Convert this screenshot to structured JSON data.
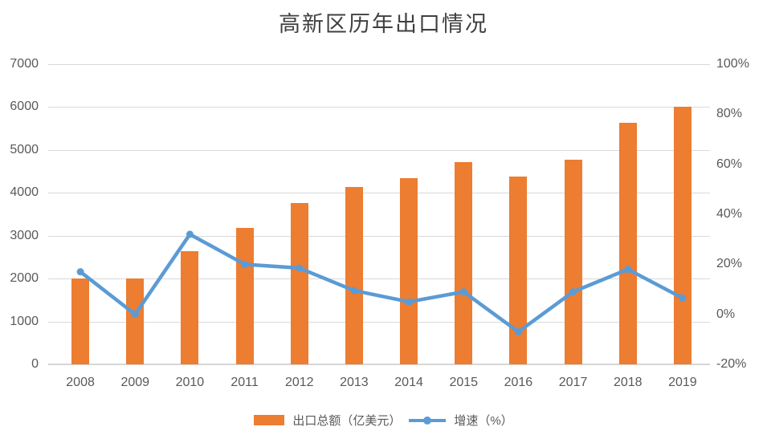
{
  "title": "高新区历年出口情况",
  "legend": {
    "items": [
      {
        "label": "出口总额（亿美元）",
        "type": "bar"
      },
      {
        "label": "增速（%）",
        "type": "line"
      }
    ],
    "position": "bottom"
  },
  "colors": {
    "bar": "#ED7D31",
    "line": "#5B9BD5",
    "grid": "#D9D9D9",
    "axis_text": "#595959",
    "title_text": "#404040",
    "background": "#FFFFFF"
  },
  "chart_data": {
    "type": "bar",
    "combo": "bar+line",
    "title": "高新区历年出口情况",
    "categories": [
      "2008",
      "2009",
      "2010",
      "2011",
      "2012",
      "2013",
      "2014",
      "2015",
      "2016",
      "2017",
      "2018",
      "2019"
    ],
    "series": [
      {
        "name": "出口总额（亿美元）",
        "type": "bar",
        "axis": "left",
        "color": "#ED7D31",
        "values": [
          2000,
          2000,
          2640,
          3180,
          3770,
          4130,
          4340,
          4720,
          4380,
          4780,
          5640,
          6000
        ]
      },
      {
        "name": "增速（%）",
        "type": "line",
        "axis": "right",
        "color": "#5B9BD5",
        "values": [
          17,
          0,
          32,
          20,
          18.5,
          9.5,
          5,
          9,
          -7,
          9,
          18,
          6.5
        ]
      }
    ],
    "left_axis": {
      "min": 0,
      "max": 7000,
      "step": 1000,
      "tick_labels": [
        "0",
        "1000",
        "2000",
        "3000",
        "4000",
        "5000",
        "6000",
        "7000"
      ]
    },
    "right_axis": {
      "min": -20,
      "max": 100,
      "step": 20,
      "tick_labels": [
        "-20%",
        "0%",
        "20%",
        "40%",
        "60%",
        "80%",
        "100%"
      ]
    },
    "grid": true,
    "legend_position": "bottom"
  }
}
